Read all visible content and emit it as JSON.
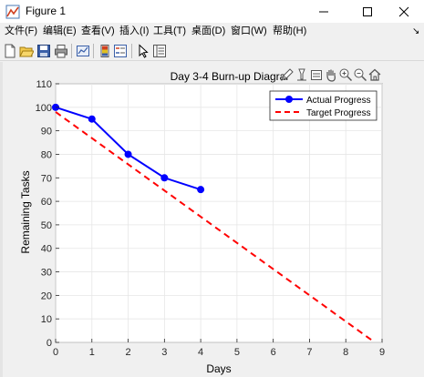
{
  "window": {
    "title": "Figure 1",
    "controls": [
      "minimize",
      "maximize",
      "close"
    ]
  },
  "menu": {
    "items": [
      {
        "label": "文件(F)"
      },
      {
        "label": "编辑(E)"
      },
      {
        "label": "查看(V)"
      },
      {
        "label": "插入(I)"
      },
      {
        "label": "工具(T)"
      },
      {
        "label": "桌面(D)"
      },
      {
        "label": "窗口(W)"
      },
      {
        "label": "帮助(H)"
      }
    ],
    "overflow_arrow": "↘"
  },
  "toolbar": {
    "buttons": [
      {
        "icon": "new-figure-icon"
      },
      {
        "icon": "open-file-icon"
      },
      {
        "icon": "save-icon"
      },
      {
        "icon": "print-icon"
      },
      {
        "icon": "link-plot-icon"
      },
      {
        "icon": "colorbar-icon"
      },
      {
        "icon": "legend-icon"
      },
      {
        "icon": "edit-pointer-icon"
      },
      {
        "icon": "property-inspector-icon"
      }
    ]
  },
  "axes_toolbar": {
    "buttons": [
      {
        "icon": "brush-icon"
      },
      {
        "icon": "data-tips-icon"
      },
      {
        "icon": "rotate-icon"
      },
      {
        "icon": "pan-hand-icon"
      },
      {
        "icon": "zoom-in-icon"
      },
      {
        "icon": "zoom-out-icon"
      },
      {
        "icon": "home-icon"
      }
    ]
  },
  "colors": {
    "actual": "#0000ff",
    "target": "#ff0000"
  },
  "chart_data": {
    "type": "line",
    "title": "Day 3-4 Burn-up Diagrar",
    "xlabel": "Days",
    "ylabel": "Remaining Tasks",
    "xlim": [
      0,
      9
    ],
    "ylim": [
      0,
      110
    ],
    "xticks": [
      0,
      1,
      2,
      3,
      4,
      5,
      6,
      7,
      8,
      9
    ],
    "yticks": [
      0,
      10,
      20,
      30,
      40,
      50,
      60,
      70,
      80,
      90,
      100,
      110
    ],
    "grid": true,
    "legend_position": "top-right",
    "series": [
      {
        "name": "Actual Progress",
        "style": "solid-marker",
        "x": [
          0,
          1,
          2,
          3,
          4
        ],
        "y": [
          100,
          95,
          80,
          70,
          65
        ]
      },
      {
        "name": "Target Progress",
        "style": "dashed",
        "x": [
          0,
          8.8
        ],
        "y": [
          98,
          0
        ]
      }
    ]
  }
}
